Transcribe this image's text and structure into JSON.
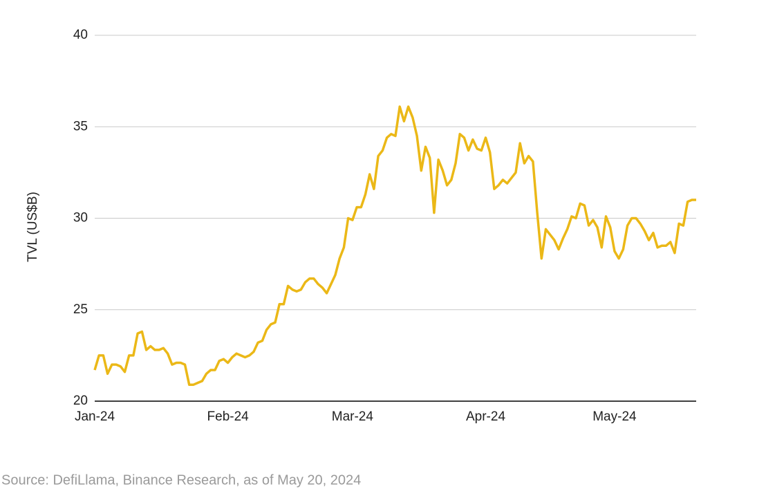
{
  "chart_data": {
    "type": "line",
    "y_axis_label": "TVL (US$B)",
    "source": "Source: DefiLlama, Binance Research, as of May 20, 2024",
    "color": "#ebb817",
    "grid": true,
    "ylim": [
      20,
      40
    ],
    "yticks": [
      20,
      25,
      30,
      35,
      40
    ],
    "categories": [
      "Jan-24",
      null,
      null,
      null,
      null,
      null,
      null,
      null,
      null,
      null,
      null,
      null,
      null,
      null,
      null,
      null,
      null,
      null,
      null,
      null,
      null,
      null,
      null,
      null,
      null,
      null,
      null,
      null,
      null,
      null,
      null,
      "Feb-24",
      null,
      null,
      null,
      null,
      null,
      null,
      null,
      null,
      null,
      null,
      null,
      null,
      null,
      null,
      null,
      null,
      null,
      null,
      null,
      null,
      null,
      null,
      null,
      null,
      null,
      null,
      null,
      null,
      "Mar-24",
      null,
      null,
      null,
      null,
      null,
      null,
      null,
      null,
      null,
      null,
      null,
      null,
      null,
      null,
      null,
      null,
      null,
      null,
      null,
      null,
      null,
      null,
      null,
      null,
      null,
      null,
      null,
      null,
      null,
      null,
      "Apr-24",
      null,
      null,
      null,
      null,
      null,
      null,
      null,
      null,
      null,
      null,
      null,
      null,
      null,
      null,
      null,
      null,
      null,
      null,
      null,
      null,
      null,
      null,
      null,
      null,
      null,
      null,
      null,
      null,
      null,
      "May-24",
      null,
      null,
      null,
      null,
      null,
      null,
      null,
      null,
      null,
      null,
      null,
      null,
      null,
      null,
      null,
      null,
      null,
      null,
      null
    ],
    "values": [
      21.7,
      22.5,
      22.5,
      21.5,
      22.0,
      22.0,
      21.9,
      21.6,
      22.5,
      22.5,
      23.7,
      23.8,
      22.8,
      23.0,
      22.8,
      22.8,
      22.9,
      22.6,
      22.0,
      22.1,
      22.1,
      22.0,
      20.9,
      20.9,
      21.0,
      21.1,
      21.5,
      21.7,
      21.7,
      22.2,
      22.3,
      22.1,
      22.4,
      22.6,
      22.5,
      22.4,
      22.5,
      22.7,
      23.2,
      23.3,
      23.9,
      24.2,
      24.3,
      25.3,
      25.3,
      26.3,
      26.1,
      26.0,
      26.1,
      26.5,
      26.7,
      26.7,
      26.4,
      26.2,
      25.9,
      26.4,
      26.9,
      27.8,
      28.4,
      30.0,
      29.9,
      30.6,
      30.6,
      31.3,
      32.4,
      31.6,
      33.4,
      33.7,
      34.4,
      34.6,
      34.5,
      36.1,
      35.3,
      36.1,
      35.5,
      34.5,
      32.6,
      33.9,
      33.3,
      30.3,
      33.2,
      32.6,
      31.8,
      32.1,
      33.0,
      34.6,
      34.4,
      33.7,
      34.3,
      33.8,
      33.7,
      34.4,
      33.6,
      31.6,
      31.8,
      32.1,
      31.9,
      32.2,
      32.5,
      34.1,
      33.0,
      33.4,
      33.1,
      30.3,
      27.8,
      29.4,
      29.1,
      28.8,
      28.3,
      28.9,
      29.4,
      30.1,
      30.0,
      30.8,
      30.7,
      29.6,
      29.9,
      29.5,
      28.4,
      30.1,
      29.5,
      28.2,
      27.8,
      28.3,
      29.6,
      30.0,
      30.0,
      29.7,
      29.3,
      28.8,
      29.2,
      28.4,
      28.5,
      28.5,
      28.7,
      28.1,
      29.7,
      29.6,
      30.9,
      31.0,
      31.0
    ]
  }
}
